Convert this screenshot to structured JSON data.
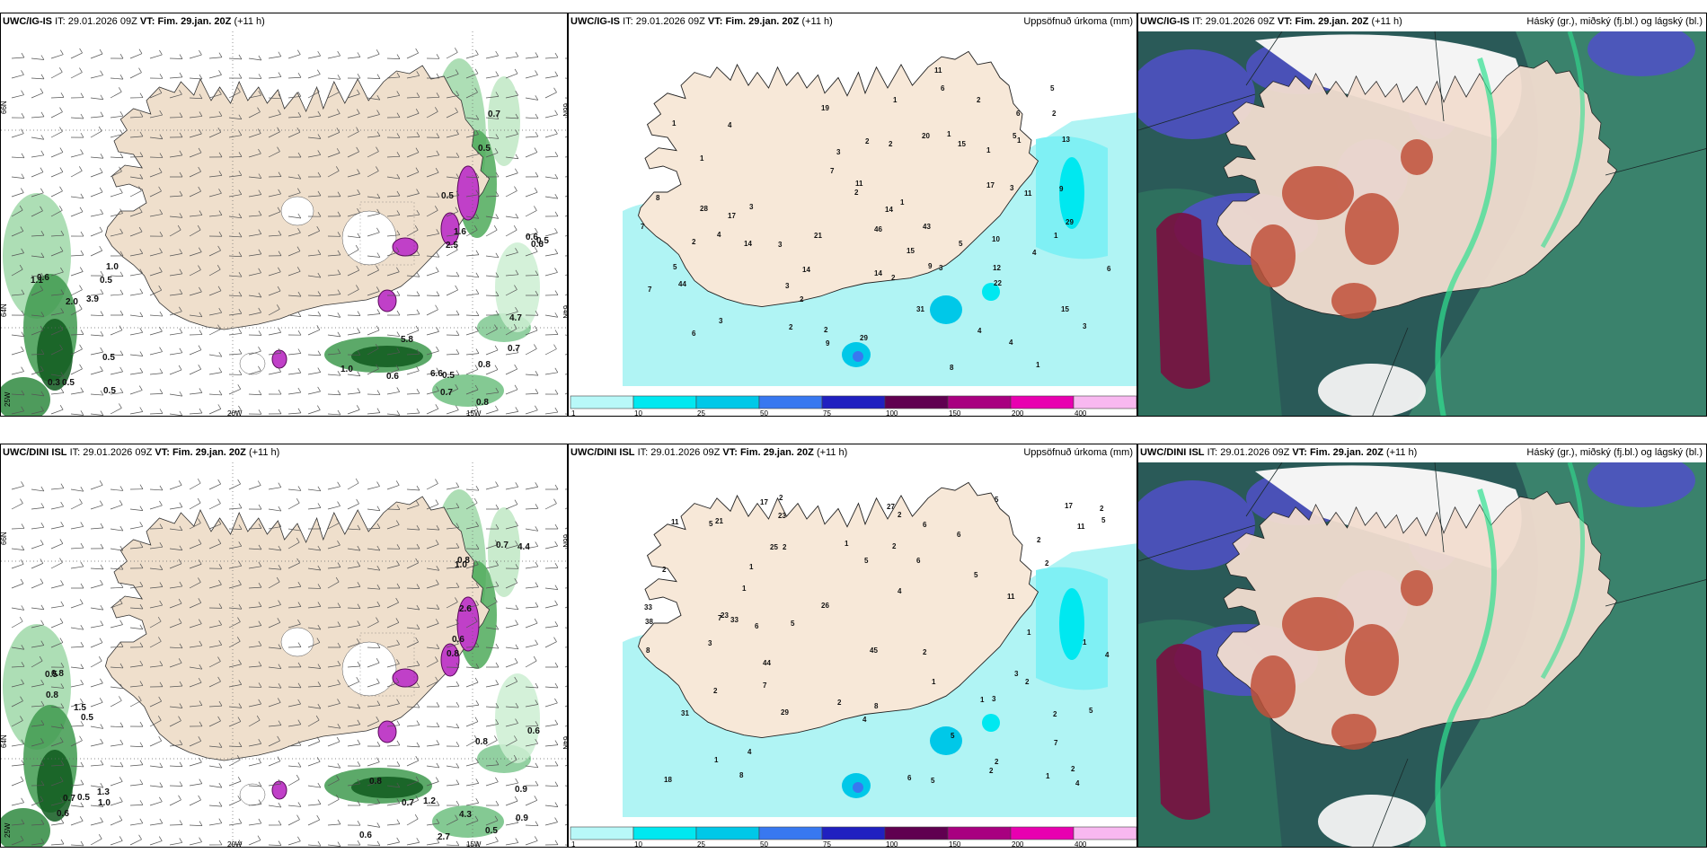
{
  "rows": [
    {
      "model_code": "UWC/IG-IS",
      "it_label": "IT:",
      "it_value": "29.01.2026 09Z",
      "vt_label": "VT:",
      "vt_value": "Fim. 29.jan. 20Z",
      "lead": "(+11 h)",
      "wind_panel": {
        "lat_labels": [
          "66N",
          "64N"
        ],
        "lon_labels": [
          "25W",
          "20W",
          "15W"
        ],
        "right_lat_labels": [
          "66N",
          "64N"
        ],
        "values": [
          "0.5",
          "0.6",
          "0.7",
          "0.5",
          "0.5",
          "0.8",
          "1.0",
          "1.6",
          "0.5",
          "0.5",
          "0.7",
          "0.8",
          "3.9",
          "4.7",
          "0.7",
          "1.1",
          "2.5",
          "5.8",
          "0.5",
          "0.5",
          "6.6",
          "2.0",
          "0.6",
          "0.6",
          "0.6",
          "0.5",
          "1.0",
          "0.3"
        ]
      },
      "precip_panel": {
        "title": "Uppsöfnuð úrkoma (mm)",
        "values": [
          "1",
          "4",
          "9",
          "1",
          "15",
          "1",
          "3",
          "3",
          "1",
          "2",
          "15",
          "4",
          "2",
          "19",
          "43",
          "44",
          "10",
          "14",
          "8",
          "6",
          "5",
          "2",
          "3",
          "6",
          "29",
          "28",
          "14",
          "46",
          "2",
          "2",
          "3",
          "2",
          "3",
          "1",
          "3",
          "4",
          "1",
          "4",
          "6",
          "8",
          "14",
          "2",
          "2",
          "11",
          "21",
          "17",
          "13",
          "6",
          "20",
          "14",
          "5",
          "9",
          "12",
          "11",
          "7",
          "7",
          "9",
          "11",
          "15",
          "17",
          "2",
          "5",
          "4",
          "1",
          "7",
          "5",
          "3",
          "1",
          "2",
          "1",
          "22",
          "29",
          "31",
          "3"
        ]
      },
      "cloud_panel": {
        "title": "Háský (gr.), miðský (fj.bl.) og lágský (bl.)"
      }
    },
    {
      "model_code": "UWC/DINI ISL",
      "it_label": "IT:",
      "it_value": "29.01.2026 09Z",
      "vt_label": "VT:",
      "vt_value": "Fim. 29.jan. 20Z",
      "lead": "(+11 h)",
      "wind_panel": {
        "lat_labels": [
          "66N",
          "64N"
        ],
        "lon_labels": [
          "25W",
          "20W",
          "15W"
        ],
        "right_lat_labels": [
          "66N",
          "64N"
        ],
        "values": [
          "0.5",
          "0.6",
          "0.9",
          "0.6",
          "0.6",
          "0.8",
          "0.8",
          "4.4",
          "2.7",
          "1.5",
          "2.6",
          "0.6",
          "0.5",
          "0.7",
          "1.2",
          "1.3",
          "0.8",
          "0.5",
          "0.7",
          "0.8",
          "0.7",
          "1.0",
          "1.0",
          "4.3",
          "0.8",
          "0.8",
          "0.9",
          "0.5"
        ]
      },
      "precip_panel": {
        "title": "Uppsöfnuð úrkoma (mm)",
        "values": [
          "2",
          "2",
          "1",
          "2",
          "11",
          "29",
          "31",
          "45",
          "44",
          "33",
          "2",
          "1",
          "2",
          "2",
          "1",
          "2",
          "4",
          "5",
          "18",
          "5",
          "6",
          "11",
          "8",
          "4",
          "3",
          "27",
          "23",
          "38",
          "1",
          "1",
          "2",
          "3",
          "5",
          "2",
          "2",
          "8",
          "7",
          "5",
          "6",
          "5",
          "2",
          "4",
          "1",
          "1",
          "2",
          "6",
          "7",
          "4",
          "5",
          "1",
          "3",
          "2",
          "5",
          "17",
          "26",
          "23",
          "25",
          "21",
          "11",
          "33",
          "17",
          "6",
          "5",
          "8",
          "6",
          "4",
          "2",
          "5",
          "2",
          "1",
          "7",
          "2"
        ]
      },
      "cloud_panel": {
        "title": "Háský (gr.), miðský (fj.bl.) og lágský (bl.)"
      }
    }
  ],
  "colorbar": {
    "ticks": [
      "1",
      "10",
      "25",
      "50",
      "75",
      "100",
      "150",
      "200",
      "400"
    ],
    "colors": [
      "#b8f8f8",
      "#00e8f0",
      "#00c8e8",
      "#3878f0",
      "#2020c0",
      "#600050",
      "#a80080",
      "#e800b0",
      "#f8b8f0"
    ]
  },
  "palette": {
    "land": "#f7e8d8",
    "land_wind": "#efdfcc",
    "sea_precip": "#b0f4f4",
    "cloud_sea": "#2a5a58"
  }
}
